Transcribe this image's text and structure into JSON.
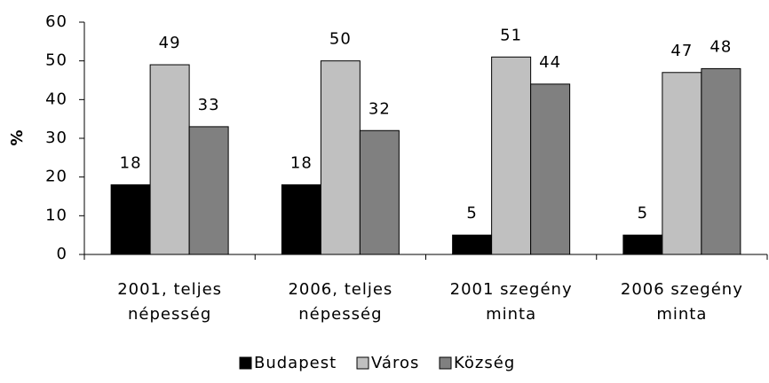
{
  "chart_data": {
    "type": "bar",
    "categories": [
      "2001, teljes\nnépesség",
      "2006, teljes\nnépesség",
      "2001 szegény\nminta",
      "2006 szegény\nminta"
    ],
    "series": [
      {
        "name": "Budapest",
        "color": "#000000",
        "values": [
          18,
          18,
          5,
          5
        ]
      },
      {
        "name": "Város",
        "color": "#c0c0c0",
        "values": [
          49,
          50,
          51,
          47
        ]
      },
      {
        "name": "Község",
        "color": "#808080",
        "values": [
          33,
          32,
          44,
          48
        ]
      }
    ],
    "ylabel": "%",
    "ylim": [
      0,
      60
    ],
    "yticks": [
      0,
      10,
      20,
      30,
      40,
      50,
      60
    ],
    "grid": false,
    "legend": "bottom"
  }
}
